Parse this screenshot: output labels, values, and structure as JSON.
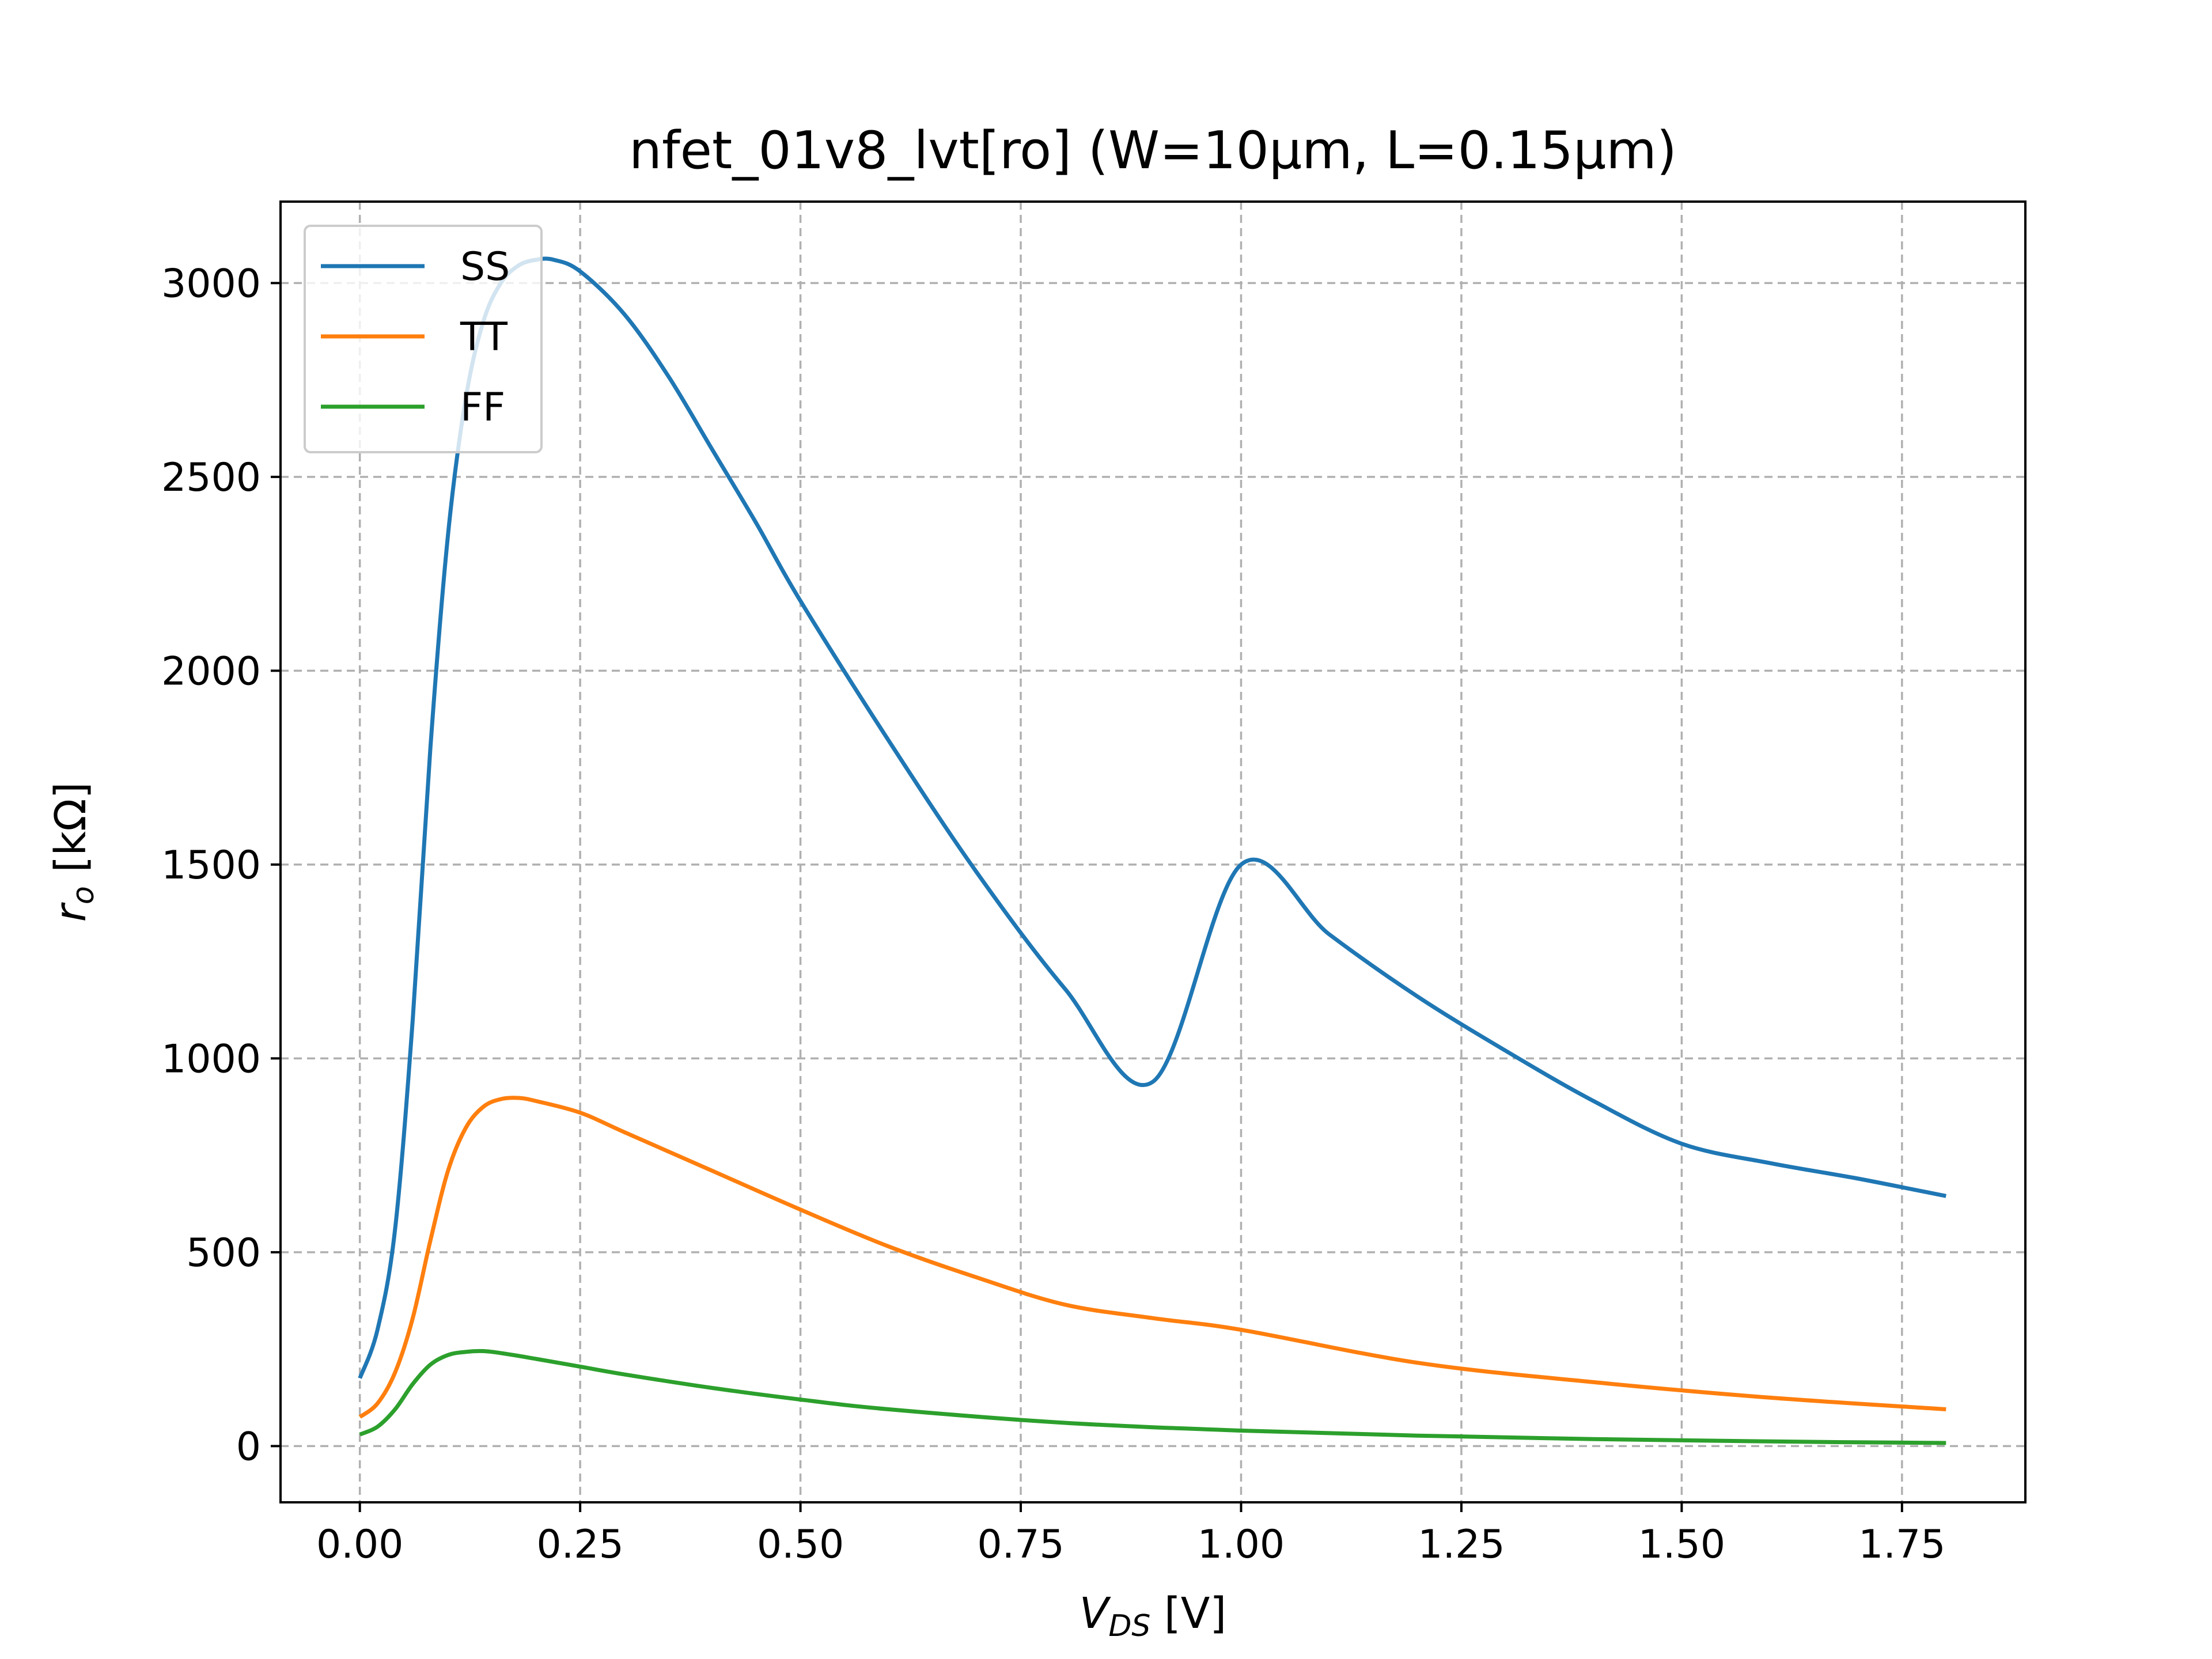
{
  "chart_data": {
    "type": "line",
    "title": "nfet_01v8_lvt[ro] (W=10μm, L=0.15μm)",
    "xlabel": {
      "main": "V",
      "sub": "DS",
      "unit": " [V]"
    },
    "ylabel": {
      "main": "r",
      "sub": "o",
      "unit": " [kΩ]"
    },
    "xlim": [
      -0.09,
      1.89
    ],
    "ylim": [
      -145,
      3210
    ],
    "xticks": [
      0.0,
      0.25,
      0.5,
      0.75,
      1.0,
      1.25,
      1.5,
      1.75
    ],
    "xtick_labels": [
      "0.00",
      "0.25",
      "0.50",
      "0.75",
      "1.00",
      "1.25",
      "1.50",
      "1.75"
    ],
    "yticks": [
      0,
      500,
      1000,
      1500,
      2000,
      2500,
      3000
    ],
    "ytick_labels": [
      "0",
      "500",
      "1000",
      "1500",
      "2000",
      "2500",
      "3000"
    ],
    "grid": true,
    "legend_position": "top-left",
    "series": [
      {
        "name": "SS",
        "color": "#1f77b4",
        "x": [
          0.0,
          0.02,
          0.04,
          0.06,
          0.08,
          0.1,
          0.12,
          0.14,
          0.16,
          0.18,
          0.2,
          0.22,
          0.25,
          0.3,
          0.35,
          0.4,
          0.45,
          0.5,
          0.6,
          0.7,
          0.8,
          0.9,
          1.0,
          1.1,
          1.2,
          1.3,
          1.4,
          1.5,
          1.6,
          1.7,
          1.8
        ],
        "y": [
          175,
          300,
          560,
          1100,
          1800,
          2350,
          2700,
          2900,
          3000,
          3045,
          3060,
          3060,
          3030,
          2920,
          2760,
          2570,
          2380,
          2180,
          1820,
          1480,
          1180,
          940,
          1500,
          1320,
          1160,
          1020,
          890,
          780,
          730,
          690,
          645
        ]
      },
      {
        "name": "TT",
        "color": "#ff7f0e",
        "x": [
          0.0,
          0.02,
          0.04,
          0.06,
          0.08,
          0.1,
          0.12,
          0.14,
          0.16,
          0.18,
          0.2,
          0.25,
          0.3,
          0.4,
          0.5,
          0.6,
          0.7,
          0.8,
          0.9,
          1.0,
          1.2,
          1.4,
          1.6,
          1.8
        ],
        "y": [
          75,
          110,
          190,
          330,
          530,
          710,
          820,
          875,
          895,
          898,
          890,
          860,
          810,
          710,
          610,
          515,
          435,
          365,
          330,
          300,
          215,
          165,
          125,
          95
        ]
      },
      {
        "name": "FF",
        "color": "#2ca02c",
        "x": [
          0.0,
          0.02,
          0.04,
          0.06,
          0.08,
          0.1,
          0.12,
          0.14,
          0.16,
          0.2,
          0.25,
          0.3,
          0.4,
          0.5,
          0.6,
          0.8,
          1.0,
          1.2,
          1.4,
          1.6,
          1.8
        ],
        "y": [
          30,
          50,
          95,
          160,
          210,
          235,
          243,
          245,
          240,
          225,
          205,
          185,
          150,
          120,
          95,
          60,
          40,
          27,
          18,
          12,
          8
        ]
      }
    ]
  }
}
